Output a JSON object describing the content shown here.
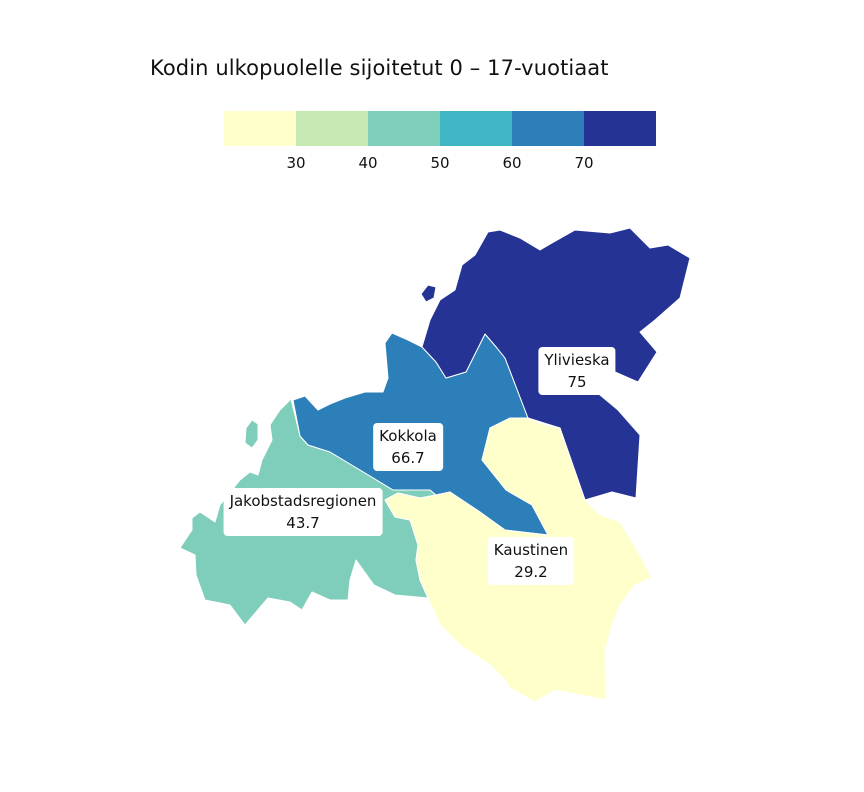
{
  "title": "Kodin ulkopuolelle sijoitetut 0 – 17-vuotiaat",
  "legend": {
    "colors": [
      "#ffffcc",
      "#c7e9b4",
      "#7fcdbb",
      "#41b6c4",
      "#2c7fb8",
      "#253494"
    ],
    "ticks": [
      "30",
      "40",
      "50",
      "60",
      "70"
    ]
  },
  "regions": [
    {
      "name": "Ylivieska",
      "value": "75",
      "color": "#253494"
    },
    {
      "name": "Kokkola",
      "value": "66.7",
      "color": "#2c7fb8"
    },
    {
      "name": "Jakobstadsregionen",
      "value": "43.7",
      "color": "#7fcdbb"
    },
    {
      "name": "Kaustinen",
      "value": "29.2",
      "color": "#ffffcc"
    }
  ]
}
